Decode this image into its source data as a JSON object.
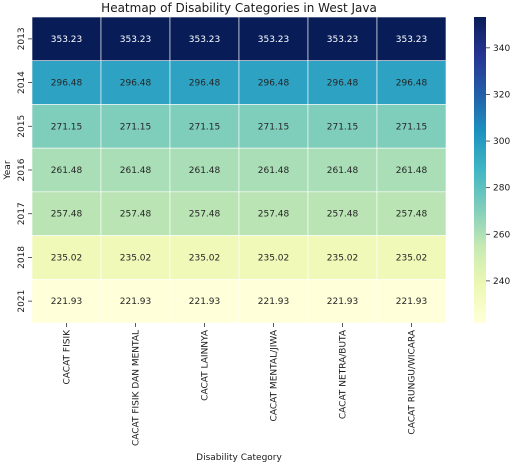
{
  "chart_data": {
    "type": "heatmap",
    "title": "Heatmap of Disability Categories in West Java",
    "xlabel": "Disability Category",
    "ylabel": "Year",
    "x_categories": [
      "CACAT FISIK",
      "CACAT FISIK DAN MENTAL",
      "CACAT LAINNYA",
      "CACAT MENTAL/JIWA",
      "CACAT NETRA/BUTA",
      "CACAT RUNGU/WICARA"
    ],
    "y_categories": [
      "2013",
      "2014",
      "2015",
      "2016",
      "2017",
      "2018",
      "2021"
    ],
    "values": [
      [
        353.23,
        353.23,
        353.23,
        353.23,
        353.23,
        353.23
      ],
      [
        296.48,
        296.48,
        296.48,
        296.48,
        296.48,
        296.48
      ],
      [
        271.15,
        271.15,
        271.15,
        271.15,
        271.15,
        271.15
      ],
      [
        261.48,
        261.48,
        261.48,
        261.48,
        261.48,
        261.48
      ],
      [
        257.48,
        257.48,
        257.48,
        257.48,
        257.48,
        257.48
      ],
      [
        235.02,
        235.02,
        235.02,
        235.02,
        235.02,
        235.02
      ],
      [
        221.93,
        221.93,
        221.93,
        221.93,
        221.93,
        221.93
      ]
    ],
    "colormap": "YlGnBu",
    "colorbar": {
      "range": [
        221.93,
        353.23
      ],
      "ticks": [
        240,
        260,
        280,
        300,
        320,
        340
      ]
    },
    "annotations": true,
    "cell_border_color": "#ffffff"
  }
}
